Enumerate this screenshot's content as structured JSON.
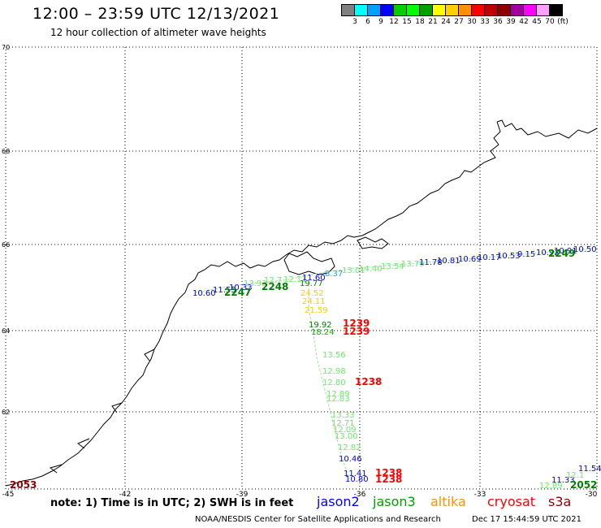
{
  "header": {
    "title": "12:00 – 23:59 UTC 12/13/2021",
    "subtitle": "12 hour collection of altimeter wave heights"
  },
  "color_scale": {
    "colors": [
      "#808080",
      "#00ffff",
      "#00a0ff",
      "#0000ff",
      "#00d000",
      "#00ff00",
      "#00a000",
      "#ffff00",
      "#ffd000",
      "#ff9000",
      "#ff0000",
      "#c00000",
      "#900000",
      "#a000a0",
      "#ff00ff",
      "#ffa0ff",
      "#000000"
    ],
    "labels": [
      "3",
      "6",
      "9",
      "12",
      "15",
      "18",
      "21",
      "24",
      "27",
      "30",
      "33",
      "36",
      "39",
      "42",
      "45",
      "70",
      "(ft)"
    ]
  },
  "axes": {
    "lat_labels": [
      "70",
      "68",
      "66",
      "64",
      "62"
    ],
    "lon_labels": [
      "-45",
      "-42",
      "-39",
      "-36",
      "-33",
      "-30"
    ]
  },
  "track_labels": [
    {
      "text": "10.60",
      "color": "#0000ff"
    },
    {
      "text": "11.55",
      "color": "#0000ff"
    },
    {
      "text": "10.33",
      "color": "#0000ff"
    },
    {
      "text": "2247",
      "color": "#008000",
      "bold": true
    },
    {
      "text": "13.93",
      "color": "#66ee66"
    },
    {
      "text": "12.7",
      "color": "#66ee66"
    },
    {
      "text": "2248",
      "color": "#008000",
      "bold": true
    },
    {
      "text": "12.11",
      "color": "#66ee66"
    },
    {
      "text": "11.60",
      "color": "#0000ff"
    },
    {
      "text": "19.77",
      "color": "#008000"
    },
    {
      "text": "8.37",
      "color": "#00aaff"
    },
    {
      "text": "13.01",
      "color": "#66ee66"
    },
    {
      "text": "14.40",
      "color": "#66ee66"
    },
    {
      "text": "13.54",
      "color": "#66ee66"
    },
    {
      "text": "13.79",
      "color": "#66ee66"
    },
    {
      "text": "11.78",
      "color": "#0000ff"
    },
    {
      "text": "10.81",
      "color": "#0000ff"
    },
    {
      "text": "10.69",
      "color": "#0000ff"
    },
    {
      "text": "10.17",
      "color": "#0000ff"
    },
    {
      "text": "10.53",
      "color": "#0000ff"
    },
    {
      "text": "9.15",
      "color": "#0000ff"
    },
    {
      "text": "10.92",
      "color": "#0000ff"
    },
    {
      "text": "10.91",
      "color": "#0000ff"
    },
    {
      "text": "10.50",
      "color": "#0000ff"
    },
    {
      "text": "2249",
      "color": "#008000",
      "bold": true
    },
    {
      "text": "24.52",
      "color": "#ffcc00"
    },
    {
      "text": "24.11",
      "color": "#ffcc00"
    },
    {
      "text": "21.59",
      "color": "#ffcc00"
    },
    {
      "text": "19.92",
      "color": "#008000"
    },
    {
      "text": "1239",
      "color": "#ff0000",
      "bold": true
    },
    {
      "text": "18.24",
      "color": "#00c000"
    },
    {
      "text": "1239",
      "color": "#ff0000",
      "bold": true
    },
    {
      "text": "13.56",
      "color": "#66ee66"
    },
    {
      "text": "12.98",
      "color": "#66ee66"
    },
    {
      "text": "12.80",
      "color": "#66ee66"
    },
    {
      "text": "1238",
      "color": "#ff0000",
      "bold": true
    },
    {
      "text": "12.89",
      "color": "#66ee66"
    },
    {
      "text": "12.83",
      "color": "#66ee66"
    },
    {
      "text": "13.33",
      "color": "#66ee66"
    },
    {
      "text": "12.71",
      "color": "#66ee66"
    },
    {
      "text": "12.09",
      "color": "#66ee66"
    },
    {
      "text": "13.00",
      "color": "#66ee66"
    },
    {
      "text": "12.82",
      "color": "#66ee66"
    },
    {
      "text": "10.46",
      "color": "#0000ff"
    },
    {
      "text": "11.41",
      "color": "#0000ff"
    },
    {
      "text": "10.80",
      "color": "#0000ff"
    },
    {
      "text": "1238",
      "color": "#ff0000",
      "bold": true
    },
    {
      "text": "1238",
      "color": "#ff0000",
      "bold": true
    },
    {
      "text": "12.89",
      "color": "#66ee66"
    },
    {
      "text": "11.33",
      "color": "#0000ff"
    },
    {
      "text": "12.1",
      "color": "#66ee66"
    },
    {
      "text": "11.54",
      "color": "#0000ff"
    },
    {
      "text": "2052",
      "color": "#008000",
      "bold": true
    },
    {
      "text": "2053",
      "color": "#900000",
      "bold": true
    }
  ],
  "footer": {
    "note": "note:  1) Time is in UTC;  2) SWH is in feet",
    "satellites": [
      {
        "name": "jason2",
        "color": "#0000ff"
      },
      {
        "name": "jason3",
        "color": "#00a000"
      },
      {
        "name": "altika",
        "color": "#ff9000"
      },
      {
        "name": "cryosat",
        "color": "#ff0000"
      },
      {
        "name": "s3a",
        "color": "#900000"
      }
    ],
    "credit": "NOAA/NESDIS Center for Satellite Applications and Research",
    "date": "Dec 17 15:44:59 UTC 2021"
  }
}
